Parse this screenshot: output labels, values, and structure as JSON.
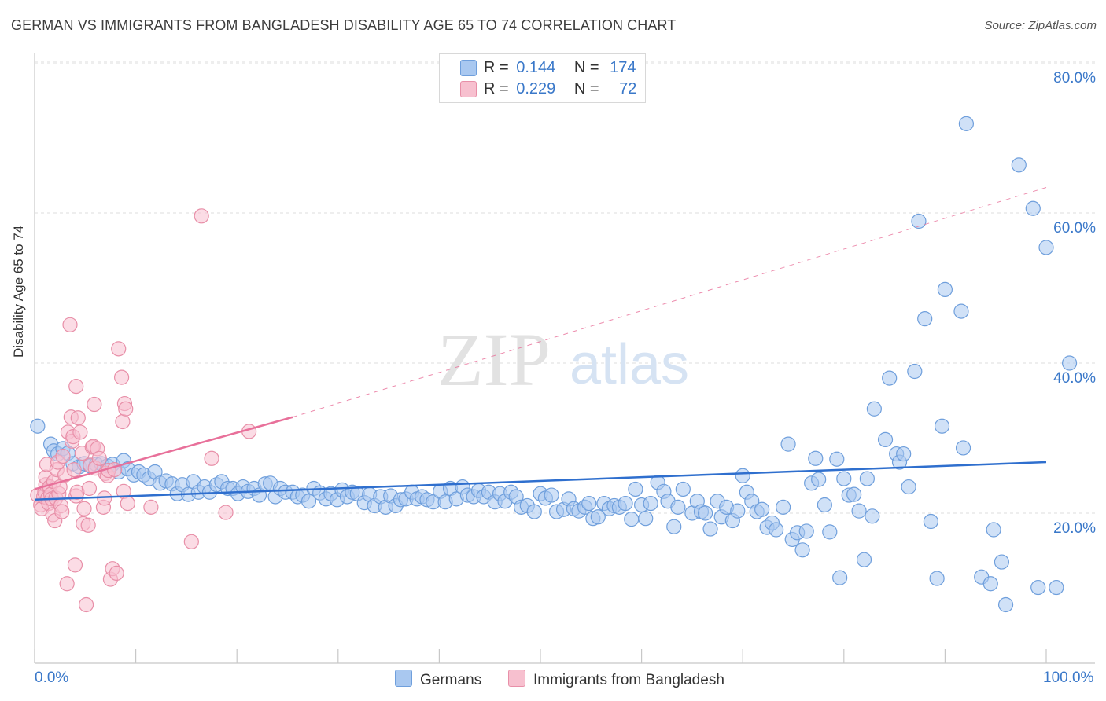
{
  "title": "GERMAN VS IMMIGRANTS FROM BANGLADESH DISABILITY AGE 65 TO 74 CORRELATION CHART",
  "source": "Source: ZipAtlas.com",
  "watermark": {
    "zip": "ZIP",
    "atlas": "atlas"
  },
  "legend": {
    "rows": [
      {
        "r_label": "R =",
        "r_value": "0.144",
        "n_label": "N =",
        "n_value": "174",
        "color": "#a9c8f0",
        "border": "#6f9fdc"
      },
      {
        "r_label": "R =",
        "r_value": "0.229",
        "n_label": "N =",
        "n_value": "72",
        "color": "#f7c0cf",
        "border": "#e88fa8"
      }
    ]
  },
  "bottom_legend": {
    "germans": "Germans",
    "bangladesh": "Immigrants from Bangladesh"
  },
  "x_axis": {
    "min_label": "0.0%",
    "max_label": "100.0%"
  },
  "chart_data": {
    "type": "scatter",
    "title": "GERMAN VS IMMIGRANTS FROM BANGLADESH DISABILITY AGE 65 TO 74 CORRELATION CHART",
    "xlabel": "",
    "ylabel": "Disability Age 65 to 74",
    "xlim": [
      0,
      100
    ],
    "ylim": [
      0,
      85
    ],
    "y_ticks": [
      20,
      40,
      60,
      80
    ],
    "y_tick_labels": [
      "20.0%",
      "40.0%",
      "60.0%",
      "80.0%"
    ],
    "x_tick_labels": [
      "0.0%",
      "100.0%"
    ],
    "grid": true,
    "legend_position": "top-center",
    "series": [
      {
        "name": "Germans",
        "color": "#a9c8f0",
        "stroke": "#6f9fdc",
        "trend": {
          "x": [
            0,
            100
          ],
          "y": [
            21.8,
            26.8
          ],
          "color": "#2f6fce",
          "style": "solid"
        },
        "points": [
          [
            0.3,
            31.6
          ],
          [
            1.6,
            29.2
          ],
          [
            1.9,
            28.3
          ],
          [
            2.3,
            27.9
          ],
          [
            2.8,
            28.6
          ],
          [
            3.3,
            28.0
          ],
          [
            3.8,
            26.6
          ],
          [
            4.4,
            26.2
          ],
          [
            4.9,
            26.6
          ],
          [
            5.5,
            26.3
          ],
          [
            6.1,
            26.5
          ],
          [
            6.6,
            26.6
          ],
          [
            7.2,
            26.3
          ],
          [
            7.7,
            26.5
          ],
          [
            8.3,
            25.5
          ],
          [
            8.8,
            27.0
          ],
          [
            9.2,
            25.9
          ],
          [
            9.8,
            25.1
          ],
          [
            10.3,
            25.5
          ],
          [
            10.8,
            25.1
          ],
          [
            11.3,
            24.6
          ],
          [
            11.9,
            25.5
          ],
          [
            12.4,
            24.0
          ],
          [
            13.0,
            24.3
          ],
          [
            13.6,
            23.9
          ],
          [
            14.1,
            22.6
          ],
          [
            14.6,
            23.8
          ],
          [
            15.2,
            22.5
          ],
          [
            15.7,
            24.2
          ],
          [
            16.2,
            22.8
          ],
          [
            16.8,
            23.5
          ],
          [
            17.3,
            22.8
          ],
          [
            18.0,
            23.8
          ],
          [
            18.5,
            24.2
          ],
          [
            19.1,
            23.3
          ],
          [
            19.6,
            23.3
          ],
          [
            20.1,
            22.6
          ],
          [
            20.6,
            23.5
          ],
          [
            21.1,
            22.9
          ],
          [
            21.7,
            23.3
          ],
          [
            22.2,
            22.4
          ],
          [
            22.8,
            23.9
          ],
          [
            23.3,
            24.0
          ],
          [
            23.8,
            22.2
          ],
          [
            24.3,
            23.3
          ],
          [
            24.8,
            22.8
          ],
          [
            25.5,
            22.8
          ],
          [
            26.0,
            22.2
          ],
          [
            26.5,
            22.4
          ],
          [
            27.1,
            21.6
          ],
          [
            27.6,
            23.3
          ],
          [
            28.2,
            22.7
          ],
          [
            28.8,
            21.9
          ],
          [
            29.3,
            22.6
          ],
          [
            29.9,
            21.8
          ],
          [
            30.4,
            23.1
          ],
          [
            30.9,
            22.2
          ],
          [
            31.4,
            22.8
          ],
          [
            31.9,
            22.6
          ],
          [
            32.6,
            21.4
          ],
          [
            33.1,
            22.5
          ],
          [
            33.6,
            21.0
          ],
          [
            34.2,
            22.2
          ],
          [
            34.7,
            20.8
          ],
          [
            35.2,
            22.3
          ],
          [
            35.7,
            21.0
          ],
          [
            36.2,
            21.8
          ],
          [
            36.7,
            21.9
          ],
          [
            37.3,
            22.8
          ],
          [
            37.8,
            21.9
          ],
          [
            38.3,
            22.2
          ],
          [
            38.8,
            21.8
          ],
          [
            39.4,
            21.5
          ],
          [
            40.1,
            22.9
          ],
          [
            40.6,
            21.5
          ],
          [
            41.1,
            23.3
          ],
          [
            41.7,
            21.9
          ],
          [
            42.3,
            23.5
          ],
          [
            42.8,
            22.4
          ],
          [
            43.4,
            22.2
          ],
          [
            43.9,
            23.0
          ],
          [
            44.4,
            22.2
          ],
          [
            44.9,
            22.8
          ],
          [
            45.5,
            21.5
          ],
          [
            46.0,
            22.6
          ],
          [
            46.5,
            21.6
          ],
          [
            47.1,
            22.8
          ],
          [
            47.6,
            22.2
          ],
          [
            48.1,
            20.8
          ],
          [
            48.7,
            21.0
          ],
          [
            49.4,
            20.2
          ],
          [
            50.0,
            22.6
          ],
          [
            50.5,
            22.0
          ],
          [
            51.1,
            22.4
          ],
          [
            51.6,
            20.2
          ],
          [
            52.3,
            20.5
          ],
          [
            52.8,
            21.9
          ],
          [
            53.3,
            20.6
          ],
          [
            53.8,
            20.3
          ],
          [
            54.4,
            20.8
          ],
          [
            54.8,
            21.3
          ],
          [
            55.2,
            19.3
          ],
          [
            55.7,
            19.5
          ],
          [
            56.3,
            21.3
          ],
          [
            56.8,
            20.6
          ],
          [
            57.3,
            21.0
          ],
          [
            57.8,
            20.8
          ],
          [
            58.4,
            21.3
          ],
          [
            59.0,
            19.2
          ],
          [
            59.4,
            23.2
          ],
          [
            60.0,
            21.1
          ],
          [
            60.4,
            19.3
          ],
          [
            60.9,
            21.3
          ],
          [
            61.6,
            24.1
          ],
          [
            62.2,
            22.9
          ],
          [
            62.6,
            21.6
          ],
          [
            63.2,
            18.2
          ],
          [
            63.6,
            20.8
          ],
          [
            64.1,
            23.2
          ],
          [
            65.0,
            20.0
          ],
          [
            65.5,
            21.6
          ],
          [
            65.9,
            20.2
          ],
          [
            66.3,
            20.0
          ],
          [
            66.8,
            17.9
          ],
          [
            67.5,
            21.6
          ],
          [
            67.9,
            19.5
          ],
          [
            68.4,
            20.8
          ],
          [
            69.0,
            19.0
          ],
          [
            69.5,
            20.3
          ],
          [
            70.0,
            25.0
          ],
          [
            70.4,
            22.8
          ],
          [
            70.9,
            21.6
          ],
          [
            71.4,
            20.2
          ],
          [
            71.9,
            20.5
          ],
          [
            72.4,
            18.1
          ],
          [
            72.9,
            18.7
          ],
          [
            73.3,
            17.8
          ],
          [
            74.0,
            20.8
          ],
          [
            74.5,
            29.2
          ],
          [
            74.9,
            16.5
          ],
          [
            75.4,
            17.4
          ],
          [
            75.9,
            15.1
          ],
          [
            76.3,
            17.6
          ],
          [
            76.8,
            24.0
          ],
          [
            77.2,
            27.3
          ],
          [
            77.5,
            24.5
          ],
          [
            78.1,
            21.1
          ],
          [
            78.6,
            17.5
          ],
          [
            79.3,
            27.2
          ],
          [
            79.6,
            11.4
          ],
          [
            80.0,
            24.6
          ],
          [
            80.5,
            22.4
          ],
          [
            81.0,
            22.5
          ],
          [
            81.5,
            20.3
          ],
          [
            82.0,
            13.8
          ],
          [
            82.3,
            24.6
          ],
          [
            83.0,
            33.9
          ],
          [
            82.8,
            19.6
          ],
          [
            84.1,
            29.8
          ],
          [
            84.5,
            38.0
          ],
          [
            85.2,
            27.9
          ],
          [
            85.5,
            26.8
          ],
          [
            85.9,
            27.9
          ],
          [
            86.4,
            23.5
          ],
          [
            87.0,
            38.9
          ],
          [
            87.4,
            58.9
          ],
          [
            88.0,
            45.9
          ],
          [
            88.6,
            18.9
          ],
          [
            89.2,
            11.3
          ],
          [
            89.7,
            31.6
          ],
          [
            90.0,
            49.8
          ],
          [
            91.6,
            46.9
          ],
          [
            91.8,
            28.7
          ],
          [
            92.1,
            71.9
          ],
          [
            93.6,
            11.5
          ],
          [
            94.5,
            10.6
          ],
          [
            94.8,
            17.8
          ],
          [
            95.6,
            13.5
          ],
          [
            96.0,
            7.8
          ],
          [
            97.3,
            66.4
          ],
          [
            98.7,
            60.6
          ],
          [
            99.2,
            10.1
          ],
          [
            100.0,
            55.4
          ],
          [
            101.0,
            10.1
          ],
          [
            102.3,
            40.0
          ]
        ]
      },
      {
        "name": "Immigrants from Bangladesh",
        "color": "#f7c0cf",
        "stroke": "#e88fa8",
        "trend": {
          "x": [
            0,
            25.5,
            100
          ],
          "y": [
            23.2,
            32.8,
            63.4
          ],
          "color": "#e8709a",
          "style": "solid-then-dashed"
        },
        "points": [
          [
            0.3,
            22.4
          ],
          [
            0.6,
            21.1
          ],
          [
            0.7,
            20.6
          ],
          [
            0.9,
            22.2
          ],
          [
            1.0,
            22.8
          ],
          [
            1.1,
            23.8
          ],
          [
            1.1,
            24.8
          ],
          [
            1.2,
            26.5
          ],
          [
            1.3,
            22.0
          ],
          [
            1.4,
            21.3
          ],
          [
            1.5,
            23.5
          ],
          [
            1.6,
            22.5
          ],
          [
            1.7,
            21.9
          ],
          [
            1.8,
            19.8
          ],
          [
            1.9,
            24.2
          ],
          [
            2.0,
            19.0
          ],
          [
            2.1,
            22.0
          ],
          [
            2.2,
            25.8
          ],
          [
            2.3,
            26.8
          ],
          [
            2.4,
            22.6
          ],
          [
            2.5,
            23.5
          ],
          [
            2.6,
            21.0
          ],
          [
            2.7,
            20.2
          ],
          [
            2.8,
            27.6
          ],
          [
            3.0,
            25.1
          ],
          [
            3.2,
            10.6
          ],
          [
            3.3,
            30.8
          ],
          [
            3.5,
            45.1
          ],
          [
            3.6,
            32.8
          ],
          [
            3.7,
            29.6
          ],
          [
            3.8,
            30.2
          ],
          [
            3.9,
            25.8
          ],
          [
            4.0,
            13.1
          ],
          [
            4.1,
            22.3
          ],
          [
            4.1,
            36.9
          ],
          [
            4.2,
            22.8
          ],
          [
            4.3,
            32.7
          ],
          [
            4.5,
            30.8
          ],
          [
            4.7,
            28.0
          ],
          [
            4.8,
            18.6
          ],
          [
            4.9,
            20.6
          ],
          [
            5.1,
            7.8
          ],
          [
            5.3,
            18.4
          ],
          [
            5.4,
            23.3
          ],
          [
            5.5,
            26.4
          ],
          [
            5.7,
            28.8
          ],
          [
            5.8,
            28.9
          ],
          [
            5.9,
            34.5
          ],
          [
            6.0,
            26.0
          ],
          [
            6.2,
            28.6
          ],
          [
            6.4,
            27.3
          ],
          [
            6.8,
            20.8
          ],
          [
            6.9,
            22.0
          ],
          [
            7.0,
            25.3
          ],
          [
            7.2,
            25.0
          ],
          [
            7.3,
            25.7
          ],
          [
            7.5,
            11.2
          ],
          [
            7.7,
            12.6
          ],
          [
            7.9,
            25.8
          ],
          [
            8.1,
            12.0
          ],
          [
            8.3,
            41.9
          ],
          [
            8.6,
            38.1
          ],
          [
            8.7,
            32.2
          ],
          [
            8.8,
            22.9
          ],
          [
            8.9,
            34.6
          ],
          [
            9.0,
            33.9
          ],
          [
            9.2,
            21.3
          ],
          [
            11.5,
            20.8
          ],
          [
            15.5,
            16.2
          ],
          [
            16.5,
            59.6
          ],
          [
            17.5,
            27.3
          ],
          [
            18.9,
            20.1
          ],
          [
            21.2,
            30.9
          ]
        ]
      }
    ]
  }
}
